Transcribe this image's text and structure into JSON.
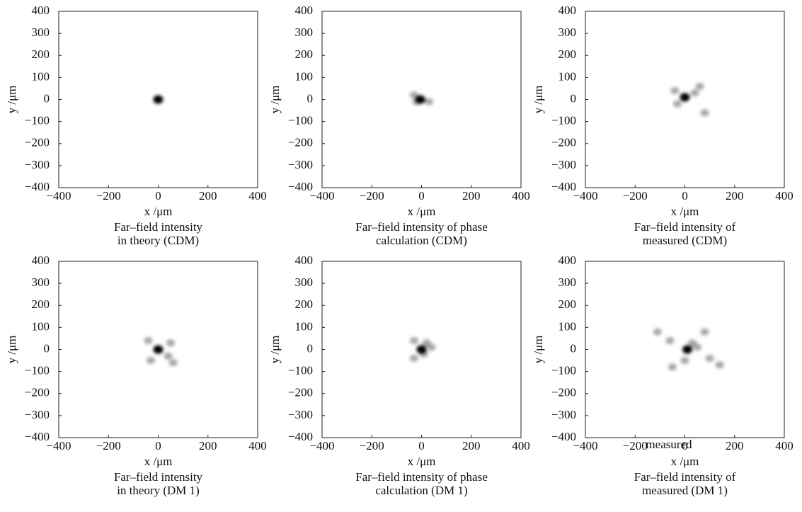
{
  "chart_data": [
    {
      "type": "image",
      "xlabel": "x /μm",
      "ylabel": "y /μm",
      "caption": [
        "Far–field intensity",
        "in theory (CDM)"
      ],
      "xlim": [
        -400,
        400
      ],
      "ylim": [
        -400,
        400
      ],
      "xticks": [
        {
          "value": -400,
          "label": "−400"
        },
        {
          "value": -200,
          "label": "−200"
        },
        0,
        200,
        400
      ],
      "yticks": [
        {
          "value": -400,
          "label": "−400"
        },
        {
          "value": -300,
          "label": "−300"
        },
        {
          "value": -200,
          "label": "−200"
        },
        {
          "value": -100,
          "label": "−100"
        },
        0,
        100,
        200,
        300,
        400
      ],
      "color": "#000000",
      "x": [
        0
      ],
      "y": [
        0
      ]
    },
    {
      "type": "image",
      "xlabel": "x /μm",
      "ylabel": "y /μm",
      "caption": [
        "Far–field intensity of phase",
        "calculation (CDM)"
      ],
      "xlim": [
        -400,
        400
      ],
      "ylim": [
        -400,
        400
      ],
      "xticks": [
        {
          "value": -400,
          "label": "−400"
        },
        {
          "value": -200,
          "label": "−200"
        },
        0,
        200,
        400
      ],
      "yticks": [
        {
          "value": -400,
          "label": "−400"
        },
        {
          "value": -300,
          "label": "−300"
        },
        {
          "value": -200,
          "label": "−200"
        },
        {
          "value": -100,
          "label": "−100"
        },
        0,
        100,
        200,
        300,
        400
      ],
      "color": "#000000",
      "x": [
        -5,
        -30,
        30,
        -20
      ],
      "y": [
        0,
        20,
        -10,
        -10
      ]
    },
    {
      "type": "image",
      "xlabel": "x /μm",
      "ylabel": "y /μm",
      "caption": [
        "Far–field intensity of",
        "measured (CDM)"
      ],
      "xlim": [
        -400,
        400
      ],
      "ylim": [
        -400,
        400
      ],
      "xticks": [
        {
          "value": -400,
          "label": "−400"
        },
        {
          "value": -200,
          "label": "−200"
        },
        0,
        200,
        400
      ],
      "yticks": [
        {
          "value": -400,
          "label": "−400"
        },
        {
          "value": -300,
          "label": "−300"
        },
        {
          "value": -200,
          "label": "−200"
        },
        {
          "value": -100,
          "label": "−100"
        },
        0,
        100,
        200,
        300,
        400
      ],
      "color": "#000000",
      "x": [
        0,
        -40,
        40,
        -30,
        80,
        60
      ],
      "y": [
        10,
        40,
        30,
        -20,
        -60,
        60
      ]
    },
    {
      "type": "image",
      "xlabel": "x /μm",
      "ylabel": "y /μm",
      "caption": [
        "Far–field intensity",
        "in theory (DM 1)"
      ],
      "xlim": [
        -400,
        400
      ],
      "ylim": [
        -400,
        400
      ],
      "xticks": [
        {
          "value": -400,
          "label": "−400"
        },
        {
          "value": -200,
          "label": "−200"
        },
        0,
        200,
        400
      ],
      "yticks": [
        {
          "value": -400,
          "label": "−400"
        },
        {
          "value": -300,
          "label": "−300"
        },
        {
          "value": -200,
          "label": "−200"
        },
        {
          "value": -100,
          "label": "−100"
        },
        0,
        100,
        200,
        300,
        400
      ],
      "color": "#000000",
      "x": [
        0,
        -40,
        40,
        -30,
        50,
        60
      ],
      "y": [
        0,
        40,
        -30,
        -50,
        30,
        -60
      ]
    },
    {
      "type": "image",
      "xlabel": "x /μm",
      "ylabel": "y /μm",
      "caption": [
        "Far–field intensity of phase",
        "calculation (DM 1)"
      ],
      "xlim": [
        -400,
        400
      ],
      "ylim": [
        -400,
        400
      ],
      "xticks": [
        {
          "value": -400,
          "label": "−400"
        },
        {
          "value": -200,
          "label": "−200"
        },
        0,
        200,
        400
      ],
      "yticks": [
        {
          "value": -400,
          "label": "−400"
        },
        {
          "value": -300,
          "label": "−300"
        },
        {
          "value": -200,
          "label": "−200"
        },
        {
          "value": -100,
          "label": "−100"
        },
        0,
        100,
        200,
        300,
        400
      ],
      "color": "#000000",
      "x": [
        0,
        -30,
        40,
        -30,
        20,
        10
      ],
      "y": [
        0,
        40,
        10,
        -40,
        30,
        -20
      ]
    },
    {
      "type": "image",
      "xlabel": "x /μm",
      "ylabel": "y /μm",
      "caption": [
        "Far–field intensity of",
        "measured (DM 1)"
      ],
      "annotation": "measured",
      "xlim": [
        -400,
        400
      ],
      "ylim": [
        -400,
        400
      ],
      "xticks": [
        {
          "value": -400,
          "label": "−400"
        },
        {
          "value": -200,
          "label": "−200"
        },
        0,
        200,
        400
      ],
      "yticks": [
        {
          "value": -400,
          "label": "−400"
        },
        {
          "value": -300,
          "label": "−300"
        },
        {
          "value": -200,
          "label": "−200"
        },
        {
          "value": -100,
          "label": "−100"
        },
        0,
        100,
        200,
        300,
        400
      ],
      "color": "#000000",
      "x": [
        10,
        -110,
        50,
        0,
        100,
        140,
        -60,
        30,
        -50,
        80
      ],
      "y": [
        0,
        80,
        10,
        -50,
        -40,
        -70,
        40,
        30,
        -80,
        80
      ]
    }
  ]
}
